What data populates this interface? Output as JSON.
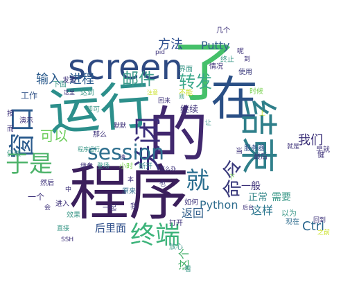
{
  "words": [
    {
      "text": "程序",
      "color": "#3b1f5c"
    },
    {
      "text": "的",
      "color": "#41286e"
    },
    {
      "text": "运行",
      "color": "#2c8f8b"
    },
    {
      "text": "了",
      "color": "#45c06a"
    },
    {
      "text": "在",
      "color": "#2a4f85"
    },
    {
      "text": "screen",
      "color": "#2e4a82"
    },
    {
      "text": "结束",
      "color": "#2f7f8a"
    },
    {
      "text": "关闭",
      "color": "#3a2d7a"
    },
    {
      "text": "session",
      "color": "#2e6f8e"
    },
    {
      "text": "窗口",
      "color": "#2a5a8c"
    },
    {
      "text": "于是",
      "color": "#4db36a"
    },
    {
      "text": "终端",
      "color": "#3cb37a"
    },
    {
      "text": "就",
      "color": "#2a6e8f"
    },
    {
      "text": "转发",
      "color": "#3ca88a"
    },
    {
      "text": "邮件",
      "color": "#3e9c8c"
    },
    {
      "text": "方法",
      "color": "#2a4d8e"
    },
    {
      "text": "Putty",
      "color": "#34618d"
    },
    {
      "text": "Python",
      "color": "#2f6d8e"
    },
    {
      "text": "Ctrl",
      "color": "#2c678e"
    },
    {
      "text": "命令",
      "color": "#3a3a7c"
    },
    {
      "text": "进程",
      "color": "#2a5a8c"
    },
    {
      "text": "输入",
      "color": "#2a5a8c"
    },
    {
      "text": "可以",
      "color": "#6ccd5a"
    },
    {
      "text": "我们",
      "color": "#3b2f78"
    },
    {
      "text": "后里面",
      "color": "#2f4f8a"
    },
    {
      "text": "返回",
      "color": "#34618d"
    },
    {
      "text": "这样",
      "color": "#2a768e"
    },
    {
      "text": "正常",
      "color": "#3a8a8c"
    },
    {
      "text": "需要",
      "color": "#3e9a8a"
    },
    {
      "text": "一般",
      "color": "#3b2f78"
    },
    {
      "text": "继续",
      "color": "#3b2f78"
    },
    {
      "text": "工作",
      "color": "#3a5a8c"
    },
    {
      "text": "小时",
      "color": "#7ad151"
    },
    {
      "text": "断开",
      "color": "#3a8a8c"
    },
    {
      "text": "界面",
      "color": "#3e9a8a"
    },
    {
      "text": "情况",
      "color": "#3b2f78"
    },
    {
      "text": "使用",
      "color": "#3a3a7c"
    },
    {
      "text": "时候",
      "color": "#7ad151"
    },
    {
      "text": "终止",
      "color": "#3e9a8a"
    },
    {
      "text": "最后",
      "color": "#3b2f78"
    },
    {
      "text": "服务器",
      "color": "#2f4f8a"
    },
    {
      "text": "就是",
      "color": "#3b2f78"
    },
    {
      "text": "早就",
      "color": "#3b2f78"
    },
    {
      "text": "以为",
      "color": "#3e9a8a"
    },
    {
      "text": "现在",
      "color": "#2f6d8e"
    },
    {
      "text": "之前",
      "color": "#c8e020"
    },
    {
      "text": "下面",
      "color": "#3e9a8a"
    },
    {
      "text": "发现",
      "color": "#3b2f78"
    },
    {
      "text": "达到",
      "color": "#3e9a8a"
    },
    {
      "text": "即可",
      "color": "#3e9a8a"
    },
    {
      "text": "那么",
      "color": "#3b2f78"
    },
    {
      "text": "原来",
      "color": "#2f6d8e"
    },
    {
      "text": "效果",
      "color": "#3e9a8a"
    },
    {
      "text": "进入",
      "color": "#3b2f78"
    },
    {
      "text": "打开",
      "color": "#3b2f78"
    },
    {
      "text": "一起",
      "color": "#3b2f78"
    },
    {
      "text": "放心",
      "color": "#3e9a8a"
    },
    {
      "text": "这个",
      "color": "#45b06a"
    },
    {
      "text": "一个",
      "color": "#3b2f78"
    },
    {
      "text": "然后",
      "color": "#3b2f78"
    },
    {
      "text": "仍然",
      "color": "#3e9a8a"
    },
    {
      "text": "演示",
      "color": "#3b2f78"
    },
    {
      "text": "默默",
      "color": "#3b2f78"
    },
    {
      "text": "登场",
      "color": "#3e9a8a"
    },
    {
      "text": "继盘",
      "color": "#3b2f78"
    },
    {
      "text": "直接",
      "color": "#3e9a8a"
    },
    {
      "text": "几个",
      "color": "#3b2f78"
    },
    {
      "text": "回到",
      "color": "#3b2f78"
    },
    {
      "text": "如何",
      "color": "#3b2f78"
    },
    {
      "text": "不能",
      "color": "#c8e020"
    },
    {
      "text": "回来",
      "color": "#3b2f78"
    },
    {
      "text": "看",
      "color": "#3e9a8a"
    },
    {
      "text": "怎么办",
      "color": "#3b2f78"
    },
    {
      "text": "SSH",
      "color": "#3b2f78"
    },
    {
      "text": "pid",
      "color": "#3b2f78"
    },
    {
      "text": "呢",
      "color": "#3b2f78"
    },
    {
      "text": "当",
      "color": "#3b2f78"
    },
    {
      "text": "按",
      "color": "#3b2f78"
    },
    {
      "text": "而",
      "color": "#3b2f78"
    },
    {
      "text": "请",
      "color": "#3b2f78"
    },
    {
      "text": "让",
      "color": "#3e9a8a"
    },
    {
      "text": "到",
      "color": "#3b2f78"
    },
    {
      "text": "我",
      "color": "#3b2f78"
    },
    {
      "text": "会",
      "color": "#3b2f78"
    },
    {
      "text": "也",
      "color": "#3b2f78"
    },
    {
      "text": "中",
      "color": "#3b2f78"
    },
    {
      "text": "下",
      "color": "#7ad151"
    },
    {
      "text": "上",
      "color": "#c8e020"
    },
    {
      "text": "本",
      "color": "#3b2f78"
    },
    {
      "text": "键",
      "color": "#3b2f78"
    },
    {
      "text": "则",
      "color": "#3e9a8a"
    },
    {
      "text": "后台",
      "color": "#3b2f78"
    },
    {
      "text": "注意",
      "color": "#c8e020"
    },
    {
      "text": "这里",
      "color": "#3b2f78"
    },
    {
      "text": "程序运行",
      "color": "#3e9a8a"
    }
  ]
}
